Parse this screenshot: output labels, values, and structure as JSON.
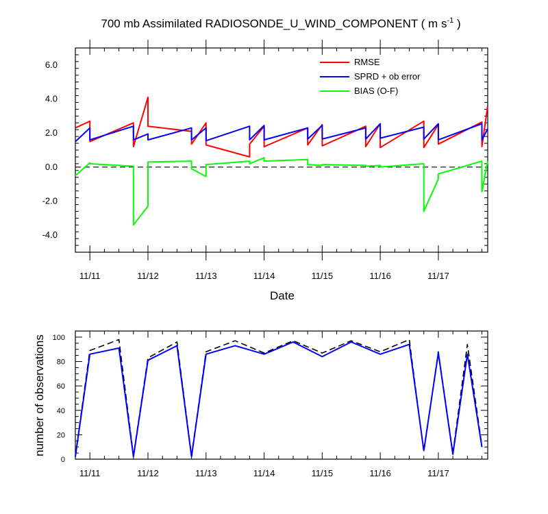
{
  "chart_data": [
    {
      "type": "line",
      "title": "700 mb Assimilated RADIOSONDE_U_WIND_COMPONENT ( m s",
      "title_sup": "-1",
      "title_end": " )",
      "xlabel": "Date",
      "ylabel": "",
      "xlim": [
        10.75,
        17.85
      ],
      "ylim": [
        -5,
        7
      ],
      "yticks": [
        -4,
        -2,
        0,
        2,
        4,
        6
      ],
      "ytick_labels": [
        "-4.0",
        "-2.0",
        "0.0",
        "2.0",
        "4.0",
        "6.0"
      ],
      "xticks": [
        11,
        12,
        13,
        14,
        15,
        16,
        17
      ],
      "xtick_labels": [
        "11/11",
        "11/12",
        "11/13",
        "11/14",
        "11/15",
        "11/16",
        "11/17"
      ],
      "zero_line": true,
      "legend_position": "top-right",
      "series": [
        {
          "name": "RMSE",
          "color": "#ff0000",
          "x": [
            10.75,
            11.0,
            11.0,
            11.75,
            11.75,
            12.0,
            12.0,
            12.75,
            12.75,
            13.0,
            13.0,
            13.75,
            13.75,
            14.0,
            14.0,
            14.75,
            14.75,
            15.0,
            15.0,
            15.75,
            15.75,
            16.0,
            16.0,
            16.75,
            16.75,
            17.0,
            17.0,
            17.75,
            17.75,
            17.85
          ],
          "y": [
            2.3,
            2.7,
            1.5,
            2.6,
            1.2,
            4.1,
            2.4,
            2.1,
            1.35,
            2.6,
            1.3,
            0.6,
            1.35,
            2.4,
            1.2,
            2.3,
            1.3,
            2.5,
            1.25,
            2.4,
            1.2,
            2.55,
            1.15,
            2.7,
            1.15,
            2.5,
            1.35,
            2.65,
            1.2,
            3.6
          ]
        },
        {
          "name": "SPRD + ob error",
          "color": "#0000ff",
          "x": [
            10.75,
            11.0,
            11.0,
            11.75,
            11.75,
            12.0,
            12.0,
            12.75,
            12.75,
            13.0,
            13.0,
            13.75,
            13.75,
            14.0,
            14.0,
            14.75,
            14.75,
            15.0,
            15.0,
            15.75,
            15.75,
            16.0,
            16.0,
            16.75,
            16.75,
            17.0,
            17.0,
            17.75,
            17.75,
            17.85
          ],
          "y": [
            1.5,
            2.3,
            1.6,
            2.4,
            1.6,
            1.95,
            1.6,
            2.3,
            1.6,
            2.3,
            1.55,
            2.4,
            1.6,
            2.45,
            1.6,
            2.3,
            1.65,
            2.45,
            1.65,
            2.3,
            1.65,
            2.55,
            1.7,
            2.35,
            1.65,
            2.55,
            1.6,
            2.55,
            1.6,
            2.25
          ]
        },
        {
          "name": "BIAS (O-F)",
          "color": "#00ff00",
          "x": [
            10.75,
            11.0,
            11.0,
            11.75,
            11.75,
            12.0,
            12.0,
            12.75,
            12.75,
            13.0,
            13.0,
            13.75,
            13.75,
            14.0,
            14.0,
            14.75,
            14.75,
            15.0,
            15.0,
            15.75,
            15.75,
            16.0,
            16.0,
            16.75,
            16.75,
            17.0,
            17.0,
            17.75,
            17.75,
            17.85
          ],
          "y": [
            -0.5,
            0.25,
            0.2,
            0.05,
            -3.4,
            -2.3,
            0.3,
            0.35,
            -0.1,
            -0.55,
            0.15,
            0.35,
            0.2,
            0.55,
            0.35,
            0.45,
            0.15,
            0.1,
            0.15,
            0.1,
            0.05,
            0.1,
            0.0,
            0.2,
            -2.6,
            -0.7,
            -0.4,
            0.35,
            -1.45,
            0.35
          ]
        }
      ]
    },
    {
      "type": "line",
      "title": "",
      "xlabel": "",
      "ylabel": "number of observations",
      "xlim": [
        10.75,
        17.85
      ],
      "ylim": [
        0,
        105
      ],
      "yticks": [
        0,
        20,
        40,
        60,
        80,
        100
      ],
      "ytick_labels": [
        "0",
        "20",
        "40",
        "60",
        "80",
        "100"
      ],
      "xticks": [
        11,
        12,
        13,
        14,
        15,
        16,
        17
      ],
      "xtick_labels": [
        "11/11",
        "11/12",
        "11/13",
        "11/14",
        "11/15",
        "11/16",
        "11/17"
      ],
      "series": [
        {
          "color": "#000000",
          "dashed": true,
          "x": [
            10.75,
            11.0,
            11.5,
            11.75,
            12.0,
            12.5,
            12.75,
            13.0,
            13.5,
            14.0,
            14.5,
            15.0,
            15.5,
            16.0,
            16.5,
            16.75,
            17.0,
            17.25,
            17.5,
            17.75
          ],
          "y": [
            3,
            89,
            98,
            3,
            83,
            96,
            3,
            88,
            97,
            87,
            97,
            87,
            97,
            88,
            98,
            6,
            88,
            5,
            94,
            11
          ]
        },
        {
          "color": "#0000ff",
          "x": [
            10.75,
            11.0,
            11.5,
            11.75,
            12.0,
            12.5,
            12.75,
            13.0,
            13.5,
            14.0,
            14.5,
            15.0,
            15.5,
            16.0,
            16.5,
            16.75,
            17.0,
            17.25,
            17.5,
            17.75
          ],
          "y": [
            2,
            86,
            91,
            2,
            81,
            93,
            2,
            86,
            93,
            86,
            96,
            84,
            96,
            86,
            94,
            7,
            87,
            4,
            86,
            10
          ]
        }
      ]
    }
  ]
}
